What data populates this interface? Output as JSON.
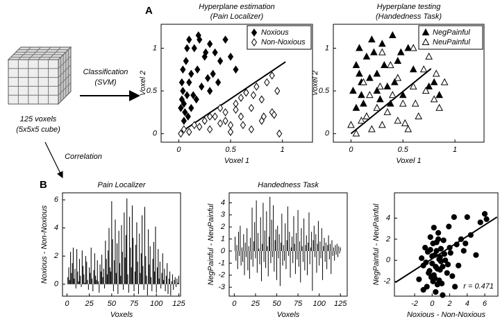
{
  "labels": {
    "panel_a": "A",
    "panel_b": "B",
    "cube": [
      "125 voxels",
      "(5x5x5 cube)"
    ],
    "classification": [
      "Classification",
      "(SVM)"
    ],
    "correlation": "Correlation"
  },
  "chart_data": [
    {
      "type": "scatter",
      "title": [
        "Hyperplane estimation",
        "(Pain Localizer)"
      ],
      "x_label": "Voxel 1",
      "y_label": "Voxel 2",
      "xlim": [
        -0.17,
        1.29
      ],
      "ylim": [
        -0.1,
        1.28
      ],
      "xticks": [
        0,
        0.5,
        1
      ],
      "yticks": [
        0,
        0.5,
        1
      ],
      "legend": "upper right",
      "line": {
        "x": [
          0,
          1.03
        ],
        "y": [
          0,
          0.84
        ]
      },
      "series": [
        {
          "name": "Noxious",
          "color": "#000000",
          "marker": "diamond",
          "filled": true,
          "x": [
            0.02,
            0.03,
            0.05,
            0.04,
            0.08,
            0.06,
            0.1,
            0.12,
            0.03,
            0.07,
            0.15,
            0.2,
            0.25,
            0.18,
            0.3,
            0.35,
            0.1,
            0.22,
            0.28,
            0.4,
            0.45,
            0.5,
            0.33,
            0.05,
            0.09,
            0.14,
            0.38,
            0.26,
            0.19,
            0.55,
            0.12,
            0.04,
            0.17,
            0.3,
            0.08
          ],
          "values": [
            0.3,
            0.4,
            0.35,
            0.5,
            0.45,
            0.25,
            0.6,
            0.7,
            0.6,
            0.85,
            1.0,
            1.1,
            0.9,
            0.75,
            1.05,
            0.95,
            1.1,
            0.55,
            0.65,
            0.85,
            1.1,
            0.9,
            0.7,
            0.15,
            0.2,
            0.45,
            0.6,
            0.95,
            1.15,
            0.75,
            0.3,
            0.75,
            0.4,
            0.5,
            1.0
          ]
        },
        {
          "name": "Non-Noxious",
          "color": "#000000",
          "marker": "diamond",
          "filled": false,
          "x": [
            0.02,
            0.05,
            0.1,
            0.15,
            0.2,
            0.25,
            0.3,
            0.35,
            0.4,
            0.45,
            0.5,
            0.55,
            0.6,
            0.65,
            0.7,
            0.75,
            0.8,
            0.85,
            0.9,
            0.95,
            0.97,
            0.3,
            0.4,
            0.5,
            0.6,
            0.7,
            0.8,
            0.9,
            0.62,
            0.72,
            0.82,
            0.92,
            0.55,
            0.45,
            0.65
          ],
          "values": [
            0.0,
            0.05,
            0.02,
            0.1,
            0.08,
            0.15,
            0.05,
            0.2,
            0.12,
            0.25,
            0.1,
            0.35,
            0.2,
            0.48,
            0.3,
            0.55,
            0.15,
            0.6,
            0.25,
            0.5,
            0.0,
            0.2,
            0.3,
            0.02,
            0.42,
            0.05,
            0.4,
            0.68,
            0.1,
            0.45,
            0.2,
            0.22,
            0.28,
            0.15,
            0.48
          ]
        }
      ]
    },
    {
      "type": "scatter",
      "title": [
        "Hyperplane testing",
        "(Handedness Task)"
      ],
      "x_label": "Voxel 1",
      "y_label": "Voxel 2",
      "xlim": [
        -0.17,
        1.28
      ],
      "ylim": [
        -0.1,
        1.28
      ],
      "xticks": [
        0,
        0.5,
        1
      ],
      "yticks": [
        0,
        0.5,
        1
      ],
      "legend": "upper right",
      "line": {
        "x": [
          0,
          0.77
        ],
        "y": [
          0,
          0.76
        ]
      },
      "series": [
        {
          "name": "NegPainful",
          "color": "#000000",
          "marker": "triangle",
          "filled": true,
          "x": [
            0.02,
            0.05,
            0.08,
            0.1,
            0.12,
            0.15,
            0.2,
            0.25,
            0.3,
            0.35,
            0.4,
            0.45,
            0.5,
            0.55,
            0.6,
            0.05,
            0.1,
            0.18,
            0.22,
            0.28,
            0.32,
            0.42,
            0.48,
            0.75,
            0.8,
            0.85,
            0.15,
            0.25,
            0.38,
            0.08
          ],
          "values": [
            0.5,
            0.8,
            1.0,
            0.6,
            0.35,
            0.9,
            1.1,
            0.7,
            1.05,
            0.55,
            1.15,
            0.85,
            0.45,
            1.0,
            0.75,
            0.3,
            0.45,
            0.65,
            0.95,
            0.4,
            0.8,
            0.6,
            0.95,
            0.55,
            0.6,
            0.45,
            0.2,
            0.5,
            0.35,
            0.7
          ]
        },
        {
          "name": "NeuPainful",
          "color": "#000000",
          "marker": "triangle",
          "filled": false,
          "x": [
            0.0,
            0.05,
            0.1,
            0.15,
            0.2,
            0.25,
            0.3,
            0.35,
            0.4,
            0.45,
            0.5,
            0.55,
            0.6,
            0.65,
            0.7,
            0.75,
            0.8,
            0.85,
            0.9,
            0.3,
            0.45,
            0.6,
            0.18,
            0.38,
            0.52,
            0.72,
            0.12,
            0.62,
            0.82,
            0.28
          ],
          "values": [
            0.1,
            0.0,
            0.15,
            0.2,
            0.05,
            0.3,
            0.1,
            0.25,
            0.45,
            0.15,
            0.35,
            0.05,
            0.55,
            0.2,
            0.75,
            0.9,
            0.4,
            0.3,
            0.6,
            0.95,
            0.65,
            1.0,
            0.45,
            0.8,
            0.12,
            0.5,
            0.6,
            0.35,
            0.7,
            0.55
          ]
        }
      ]
    },
    {
      "type": "bar",
      "title": [
        "Pain Localizer"
      ],
      "x_label": "Voxels",
      "y_label": "Noxious - Non-Noxious",
      "color": "#000000",
      "xlim": [
        -5,
        127
      ],
      "ylim": [
        -0.85,
        6.5
      ],
      "xticks": [
        0,
        25,
        50,
        75,
        100,
        125
      ],
      "yticks": [
        0,
        2,
        4,
        6
      ],
      "values": [
        0.5,
        1.2,
        0.3,
        2.3,
        0.8,
        1.5,
        2.6,
        0.4,
        1.1,
        -0.3,
        2.5,
        0.9,
        0.2,
        1.8,
        0.6,
        -0.2,
        2.4,
        1.3,
        0.7,
        0.1,
        2.0,
        1.6,
        0.3,
        -0.4,
        1.2,
        0.8,
        2.6,
        0.4,
        -0.5,
        1.0,
        2.2,
        0.6,
        0.3,
        1.7,
        0.2,
        -0.6,
        1.4,
        0.9,
        2.1,
        0.5,
        1.1,
        -0.3,
        3.1,
        1.8,
        0.7,
        2.4,
        4.0,
        1.2,
        0.9,
        5.9,
        3.2,
        -0.5,
        1.7,
        4.6,
        0.8,
        2.9,
        -0.7,
        3.8,
        1.5,
        0.6,
        4.2,
        2.3,
        -0.4,
        5.1,
        1.9,
        3.5,
        6.1,
        0.7,
        -0.6,
        4.8,
        2.6,
        1.2,
        5.6,
        3.3,
        -0.5,
        0.9,
        2.8,
        4.4,
        1.6,
        -0.7,
        3.6,
        0.8,
        2.2,
        4.9,
        1.3,
        -0.4,
        5.5,
        2.0,
        0.6,
        -0.8,
        3.9,
        1.4,
        2.7,
        0.5,
        -0.5,
        1.8,
        3.0,
        0.9,
        4.1,
        -0.6,
        1.2,
        2.5,
        0.4,
        1.6,
        -0.3,
        0.8,
        2.2,
        0.3,
        1.1,
        -0.5,
        0.6,
        1.5,
        -0.7,
        0.4,
        0.9,
        -0.8,
        0.2,
        0.7,
        -0.4,
        0.3,
        0.5,
        -0.2,
        0.4,
        0.1,
        0.6
      ]
    },
    {
      "type": "bar",
      "title": [
        "Handedness Task"
      ],
      "x_label": "Voxels",
      "y_label": "NegPainful - NeuPainful",
      "color": "#000000",
      "xlim": [
        -6,
        133
      ],
      "ylim": [
        -3.74,
        4.83
      ],
      "xticks": [
        0,
        25,
        50,
        75,
        100,
        125
      ],
      "yticks": [
        -3,
        -2,
        -1,
        0,
        1,
        2,
        3,
        4
      ],
      "values": [
        1.2,
        -0.8,
        0.5,
        -1.5,
        1.6,
        -0.4,
        2.1,
        -1.2,
        0.3,
        -0.9,
        1.4,
        -2.0,
        0.7,
        -0.5,
        1.9,
        -1.6,
        0.4,
        -2.3,
        1.1,
        -0.7,
        3.6,
        -1.3,
        0.8,
        2.4,
        -0.6,
        4.2,
        -1.8,
        1.5,
        0.2,
        -1.1,
        2.8,
        -2.5,
        0.6,
        4.0,
        -0.9,
        1.7,
        -1.4,
        3.3,
        0.4,
        -2.1,
        1.2,
        4.5,
        -1.0,
        2.6,
        -0.5,
        3.8,
        -1.7,
        0.9,
        1.8,
        -2.4,
        2.1,
        -0.6,
        1.4,
        -2.9,
        0.7,
        3.1,
        -1.2,
        0.5,
        -0.8,
        2.3,
        -1.5,
        0.9,
        3.7,
        -0.4,
        1.6,
        -2.2,
        0.3,
        1.2,
        -1.0,
        2.9,
        0.6,
        -1.9,
        1.5,
        -0.7,
        3.4,
        -1.3,
        0.8,
        -2.6,
        1.9,
        0.4,
        -0.9,
        2.7,
        -1.6,
        0.5,
        1.3,
        -2.0,
        0.7,
        3.2,
        -1.1,
        0.3,
        1.6,
        -3.3,
        0.9,
        2.1,
        -0.5,
        1.4,
        -1.8,
        0.6,
        2.5,
        -1.2,
        0.8,
        -0.6,
        1.9,
        -2.4,
        0.4,
        1.1,
        -0.9,
        0.7,
        -1.5,
        0.5,
        1.3,
        -0.7,
        0.6,
        -1.9,
        0.9,
        -0.4,
        0.3,
        -0.8,
        0.5,
        -0.3,
        0.6,
        -0.5,
        0.4,
        -0.2,
        0.3
      ]
    },
    {
      "type": "scatter",
      "x_label": "Noxious - Non-Noxious",
      "y_label": "NegPainful - NeuPainful",
      "annotation": "r = 0.471",
      "xlim": [
        -4.3,
        7.5
      ],
      "ylim": [
        -3.4,
        6.4
      ],
      "xticks": [
        -2,
        0,
        2,
        4,
        6
      ],
      "yticks": [
        -2,
        0,
        2,
        4
      ],
      "line": {
        "x": [
          -4.2,
          7.4
        ],
        "y": [
          -2.1,
          4.1
        ]
      },
      "series": [
        {
          "color": "#000000",
          "marker": "circle",
          "filled": true,
          "x": [
            -1.5,
            -1.2,
            -1.0,
            -0.8,
            -0.6,
            -0.5,
            -0.3,
            -0.2,
            0.0,
            0.1,
            0.2,
            0.3,
            0.4,
            0.5,
            0.6,
            0.7,
            0.8,
            0.9,
            1.0,
            1.1,
            1.2,
            1.3,
            1.5,
            1.7,
            1.9,
            2.1,
            2.3,
            2.5,
            2.8,
            3.0,
            3.3,
            3.6,
            4.0,
            4.4,
            5.0,
            5.5,
            6.0,
            6.2,
            -0.4,
            0.1,
            0.5,
            0.9,
            1.4,
            0.0,
            -0.7,
            0.3,
            0.7,
            1.8,
            2.6,
            0.2,
            -1.0,
            0.6,
            1.0,
            -0.2,
            0.4,
            1.2,
            2.0,
            0.8,
            -0.1,
            3.8
          ],
          "values": [
            -1.8,
            0.2,
            -0.5,
            1.2,
            -2.5,
            0.8,
            -1.0,
            2.2,
            -0.3,
            1.6,
            -1.4,
            0.5,
            -3.0,
            0.9,
            -0.8,
            2.6,
            -1.9,
            0.3,
            1.1,
            -2.2,
            -0.6,
            1.9,
            0.0,
            -1.2,
            3.2,
            0.7,
            -1.5,
            4.1,
            1.5,
            -0.5,
            2.0,
            0.9,
            4.1,
            2.4,
            0.5,
            3.6,
            4.4,
            3.9,
            -1.2,
            -2.0,
            1.7,
            -0.9,
            0.6,
            0.4,
            -0.2,
            -1.7,
            2.0,
            -0.4,
            -2.5,
            3.1,
            -2.8,
            -2.3,
            -0.1,
            1.0,
            -0.6,
            -3.3,
            1.2,
            0.1,
            -1.6,
            1.6
          ]
        }
      ]
    }
  ]
}
